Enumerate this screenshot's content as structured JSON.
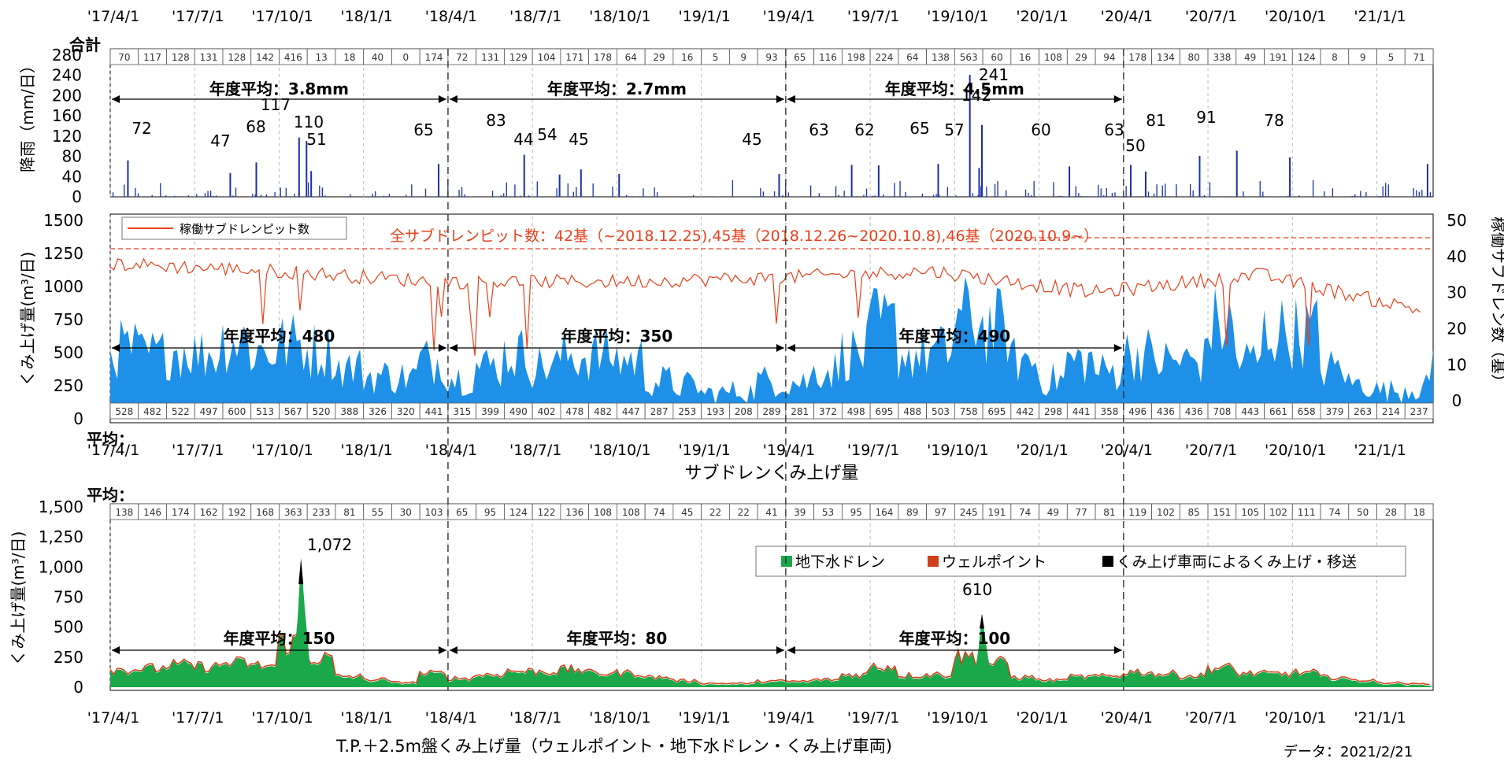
{
  "panels": {
    "rain": {
      "ylabel": "降雨（mm/日）",
      "total_label": "合計",
      "yticks": [
        "280",
        "240",
        "200",
        "160",
        "120",
        "80",
        "40",
        "0"
      ],
      "top_ticks": [
        "'17/4/1",
        "'17/7/1",
        "'17/10/1",
        "'18/1/1",
        "'18/4/1",
        "'18/7/1",
        "'18/10/1",
        "'19/1/1",
        "'19/4/1",
        "'19/7/1",
        "'19/10/1",
        "'20/1/1",
        "'20/4/1",
        "'20/7/1",
        "'20/10/1",
        "'21/1/1"
      ],
      "monthly_totals": [
        "70",
        "117",
        "128",
        "131",
        "128",
        "142",
        "416",
        "13",
        "18",
        "40",
        "0",
        "174",
        "72",
        "131",
        "129",
        "104",
        "171",
        "178",
        "64",
        "29",
        "16",
        "5",
        "9",
        "93",
        "65",
        "116",
        "198",
        "224",
        "64",
        "138",
        "563",
        "60",
        "16",
        "108",
        "29",
        "94",
        "178",
        "134",
        "80",
        "338",
        "49",
        "191",
        "124",
        "8",
        "9",
        "5",
        "71"
      ],
      "annual_avgs": [
        "年度平均：3.8mm",
        "年度平均：2.7mm",
        "年度平均：4.5mm"
      ],
      "peak_labels": [
        "72",
        "47",
        "68",
        "117",
        "110",
        "51",
        "65",
        "83",
        "44",
        "54",
        "45",
        "45",
        "63",
        "62",
        "65",
        "57",
        "241",
        "142",
        "60",
        "63",
        "50",
        "81",
        "91",
        "78"
      ]
    },
    "subdrain": {
      "ylabel_left": "くみ上げ量(m³/日)",
      "ylabel_right": "稼働サブドレン数（基）",
      "yticks_left": [
        "1500",
        "1250",
        "1000",
        "750",
        "500",
        "250",
        "0"
      ],
      "yticks_right": [
        "50",
        "40",
        "30",
        "20",
        "10",
        "0"
      ],
      "legend": "稼働サブドレンピット数",
      "note": "全サブドレンピット数：42基（~2018.12.25),45基（2018.12.26~2020.10.8),46基（2020.10.9~）",
      "annual_avgs": [
        "年度平均：480",
        "年度平均：350",
        "年度平均：490"
      ],
      "avg_label": "平均：",
      "monthly_avgs": [
        "528",
        "482",
        "522",
        "497",
        "600",
        "513",
        "567",
        "520",
        "388",
        "326",
        "320",
        "441",
        "315",
        "399",
        "490",
        "402",
        "478",
        "482",
        "447",
        "287",
        "253",
        "193",
        "208",
        "289",
        "281",
        "372",
        "498",
        "695",
        "488",
        "503",
        "758",
        "695",
        "442",
        "298",
        "441",
        "358",
        "496",
        "436",
        "436",
        "708",
        "443",
        "661",
        "658",
        "379",
        "263",
        "214",
        "237"
      ],
      "xticks": [
        "'17/4/1",
        "'17/7/1",
        "'17/10/1",
        "'18/1/1",
        "'18/4/1",
        "'18/7/1",
        "'18/10/1",
        "'19/1/1",
        "'19/4/1",
        "'19/7/1",
        "'19/10/1",
        "'20/1/1",
        "'20/4/1",
        "'20/7/1",
        "'20/10/1",
        "'21/1/1"
      ],
      "xtitle": "サブドレンくみ上げ量"
    },
    "tp": {
      "ylabel": "くみ上げ量(m³/日)",
      "yticks": [
        "1,500",
        "1,250",
        "1,000",
        "750",
        "500",
        "250",
        "0"
      ],
      "avg_label": "平均：",
      "monthly_avgs": [
        "138",
        "146",
        "174",
        "162",
        "192",
        "168",
        "363",
        "233",
        "81",
        "55",
        "30",
        "103",
        "65",
        "95",
        "124",
        "122",
        "136",
        "108",
        "108",
        "74",
        "45",
        "22",
        "22",
        "41",
        "39",
        "53",
        "95",
        "164",
        "89",
        "97",
        "245",
        "191",
        "74",
        "49",
        "77",
        "81",
        "119",
        "102",
        "85",
        "151",
        "105",
        "102",
        "111",
        "74",
        "50",
        "28",
        "18"
      ],
      "legend": [
        "地下水ドレン",
        "ウェルポイント",
        "くみ上げ車両によるくみ上げ・移送"
      ],
      "annual_avgs": [
        "年度平均：150",
        "年度平均：80",
        "年度平均：100"
      ],
      "peaks": [
        "1,072",
        "610"
      ],
      "xticks": [
        "'17/4/1",
        "'17/7/1",
        "'17/10/1",
        "'18/1/1",
        "'18/4/1",
        "'18/7/1",
        "'18/10/1",
        "'19/1/1",
        "'19/4/1",
        "'19/7/1",
        "'19/10/1",
        "'20/1/1",
        "'20/4/1",
        "'20/7/1",
        "'20/10/1",
        "'21/1/1"
      ],
      "xtitle": "T.P.＋2.5m盤くみ上げ量（ウェルポイント・地下水ドレン・くみ上げ車両)"
    }
  },
  "data_date": "データ：2021/2/21",
  "colors": {
    "rain": "#1b2fa8",
    "subdrain_area": "#1e90e8",
    "pits_line": "#e8401c",
    "groundwater": "#1aa84a",
    "wellpoint": "#d0401a",
    "truck": "#000000"
  },
  "chart_data": [
    {
      "type": "bar",
      "ylabel": "降雨（mm/日）",
      "ylim": [
        0,
        280
      ],
      "x_range": [
        "2017-04-01",
        "2021-02-21"
      ],
      "peaks": [
        {
          "x": "2017-04-20",
          "value": 72
        },
        {
          "x": "2017-08-08",
          "value": 47
        },
        {
          "x": "2017-09-05",
          "value": 68
        },
        {
          "x": "2017-10-21",
          "value": 117
        },
        {
          "x": "2017-10-29",
          "value": 110
        },
        {
          "x": "2017-11-03",
          "value": 51
        },
        {
          "x": "2018-03-20",
          "value": 65
        },
        {
          "x": "2018-06-20",
          "value": 83
        },
        {
          "x": "2018-07-28",
          "value": 44
        },
        {
          "x": "2018-08-20",
          "value": 54
        },
        {
          "x": "2018-09-30",
          "value": 45
        },
        {
          "x": "2019-03-21",
          "value": 45
        },
        {
          "x": "2019-06-07",
          "value": 63
        },
        {
          "x": "2019-07-06",
          "value": 62
        },
        {
          "x": "2019-09-08",
          "value": 65
        },
        {
          "x": "2019-10-12",
          "value": 241
        },
        {
          "x": "2019-10-22",
          "value": 57
        },
        {
          "x": "2019-10-25",
          "value": 142
        },
        {
          "x": "2020-01-27",
          "value": 60
        },
        {
          "x": "2020-04-02",
          "value": 63
        },
        {
          "x": "2020-04-18",
          "value": 50
        },
        {
          "x": "2020-06-15",
          "value": 81
        },
        {
          "x": "2020-07-25",
          "value": 91
        },
        {
          "x": "2020-09-20",
          "value": 78
        },
        {
          "x": "2021-02-15",
          "value": 65
        }
      ]
    },
    {
      "type": "area",
      "ylabel": "くみ上げ量(m³/日)",
      "ylim": [
        0,
        1500
      ],
      "y2label": "稼働サブドレン数（基）",
      "y2lim": [
        -5,
        50
      ],
      "monthly_avg_series": {
        "name": "",
        "values": [
          528,
          482,
          522,
          497,
          600,
          513,
          567,
          520,
          388,
          326,
          320,
          441,
          315,
          399,
          490,
          402,
          478,
          482,
          447,
          287,
          253,
          193,
          208,
          289,
          281,
          372,
          498,
          695,
          488,
          503,
          758,
          695,
          442,
          298,
          441,
          358,
          496,
          436,
          436,
          708,
          443,
          661,
          658,
          379,
          263,
          214,
          237
        ]
      },
      "pits_series": {
        "name": "稼働サブドレンピット数",
        "x": [
          "2017-04",
          "2017-10",
          "2018-04",
          "2018-10",
          "2019-04",
          "2019-10",
          "2020-04",
          "2020-10",
          "2021-02"
        ],
        "values": [
          38,
          36,
          33,
          33,
          34,
          36,
          30,
          35,
          25
        ]
      }
    },
    {
      "type": "area",
      "ylabel": "くみ上げ量(m³/日)",
      "ylim": [
        0,
        1500
      ],
      "series": [
        {
          "name": "地下水ドレン",
          "values": [
            138,
            146,
            174,
            162,
            192,
            168,
            363,
            233,
            81,
            55,
            30,
            103,
            65,
            95,
            124,
            122,
            136,
            108,
            108,
            74,
            45,
            22,
            22,
            41,
            39,
            53,
            95,
            164,
            89,
            97,
            245,
            191,
            74,
            49,
            77,
            81,
            119,
            102,
            85,
            151,
            105,
            102,
            111,
            74,
            50,
            28,
            18
          ]
        }
      ],
      "peaks": [
        {
          "x": "2017-10-23",
          "value": 1072
        },
        {
          "x": "2019-10-25",
          "value": 610
        }
      ]
    }
  ]
}
